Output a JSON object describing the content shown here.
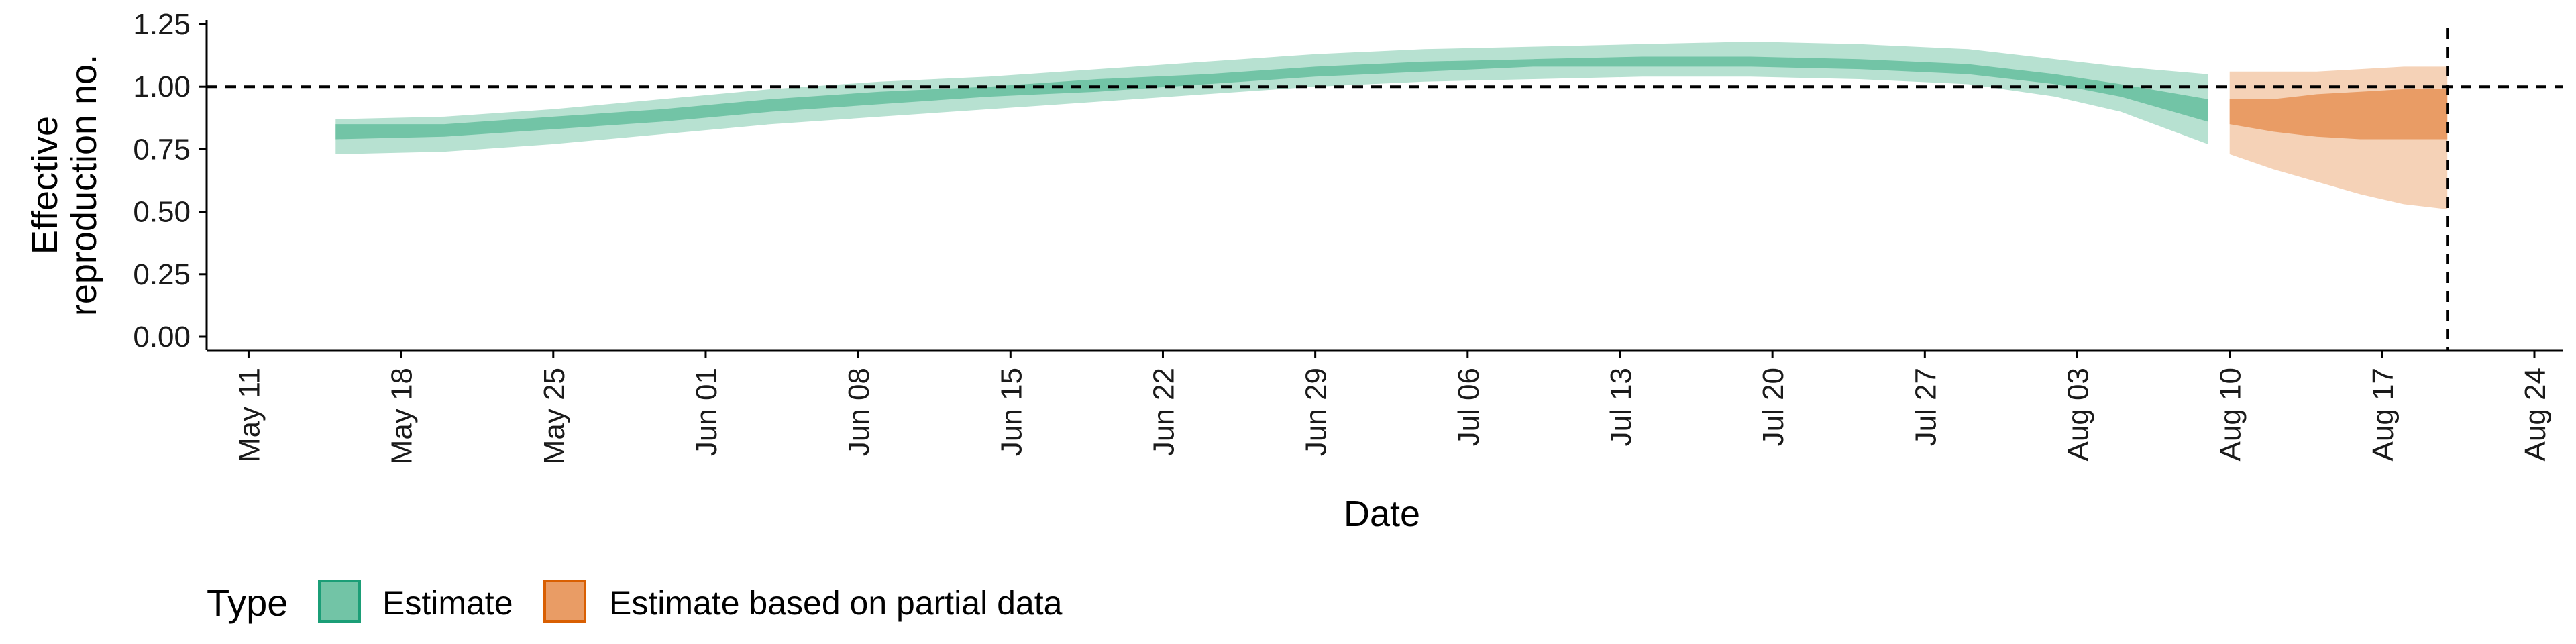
{
  "chart_data": {
    "type": "area",
    "xlabel": "Date",
    "ylabel_lines": [
      "Effective",
      "reproduction no."
    ],
    "ylim": [
      0,
      1.25
    ],
    "y_ticks": [
      {
        "value": 0.0,
        "label": "0.00"
      },
      {
        "value": 0.25,
        "label": "0.25"
      },
      {
        "value": 0.5,
        "label": "0.50"
      },
      {
        "value": 0.75,
        "label": "0.75"
      },
      {
        "value": 1.0,
        "label": "1.00"
      },
      {
        "value": 1.25,
        "label": "1.25"
      }
    ],
    "xlim": [
      "2020-05-10",
      "2020-08-24"
    ],
    "x_ticks": [
      {
        "date": "2020-05-11",
        "label": "May 11"
      },
      {
        "date": "2020-05-18",
        "label": "May 18"
      },
      {
        "date": "2020-05-25",
        "label": "May 25"
      },
      {
        "date": "2020-06-01",
        "label": "Jun 01"
      },
      {
        "date": "2020-06-08",
        "label": "Jun 08"
      },
      {
        "date": "2020-06-15",
        "label": "Jun 15"
      },
      {
        "date": "2020-06-22",
        "label": "Jun 22"
      },
      {
        "date": "2020-06-29",
        "label": "Jun 29"
      },
      {
        "date": "2020-07-06",
        "label": "Jul 06"
      },
      {
        "date": "2020-07-13",
        "label": "Jul 13"
      },
      {
        "date": "2020-07-20",
        "label": "Jul 20"
      },
      {
        "date": "2020-07-27",
        "label": "Jul 27"
      },
      {
        "date": "2020-08-03",
        "label": "Aug 03"
      },
      {
        "date": "2020-08-10",
        "label": "Aug 10"
      },
      {
        "date": "2020-08-17",
        "label": "Aug 17"
      },
      {
        "date": "2020-08-24",
        "label": "Aug 24"
      }
    ],
    "reference_line_y": 1.0,
    "reference_line_x": "2020-08-20",
    "legend": {
      "title": "Type",
      "position": "bottom-left",
      "entries": [
        {
          "label": "Estimate",
          "fill": "#72C4A6",
          "stroke": "#1B9E77"
        },
        {
          "label": "Estimate based on partial data",
          "fill": "#E99C65",
          "stroke": "#D95F02"
        }
      ]
    },
    "series": [
      {
        "name": "Estimate",
        "fill_outer": "#B7E1D1",
        "fill_inner": "#72C4A6",
        "points": [
          {
            "date": "2020-05-15",
            "lo90": 0.73,
            "lo50": 0.79,
            "hi50": 0.85,
            "hi90": 0.87
          },
          {
            "date": "2020-05-20",
            "lo90": 0.74,
            "lo50": 0.8,
            "hi50": 0.85,
            "hi90": 0.88
          },
          {
            "date": "2020-05-25",
            "lo90": 0.77,
            "lo50": 0.83,
            "hi50": 0.88,
            "hi90": 0.91
          },
          {
            "date": "2020-05-30",
            "lo90": 0.81,
            "lo50": 0.86,
            "hi50": 0.91,
            "hi90": 0.95
          },
          {
            "date": "2020-06-04",
            "lo90": 0.85,
            "lo50": 0.9,
            "hi50": 0.95,
            "hi90": 0.99
          },
          {
            "date": "2020-06-09",
            "lo90": 0.88,
            "lo50": 0.93,
            "hi50": 0.98,
            "hi90": 1.02
          },
          {
            "date": "2020-06-14",
            "lo90": 0.91,
            "lo50": 0.96,
            "hi50": 1.0,
            "hi90": 1.04
          },
          {
            "date": "2020-06-19",
            "lo90": 0.94,
            "lo50": 0.98,
            "hi50": 1.03,
            "hi90": 1.07
          },
          {
            "date": "2020-06-24",
            "lo90": 0.97,
            "lo50": 1.01,
            "hi50": 1.05,
            "hi90": 1.1
          },
          {
            "date": "2020-06-29",
            "lo90": 1.0,
            "lo50": 1.04,
            "hi50": 1.08,
            "hi90": 1.13
          },
          {
            "date": "2020-07-04",
            "lo90": 1.02,
            "lo50": 1.06,
            "hi50": 1.1,
            "hi90": 1.15
          },
          {
            "date": "2020-07-09",
            "lo90": 1.03,
            "lo50": 1.08,
            "hi50": 1.11,
            "hi90": 1.16
          },
          {
            "date": "2020-07-14",
            "lo90": 1.04,
            "lo50": 1.08,
            "hi50": 1.12,
            "hi90": 1.17
          },
          {
            "date": "2020-07-19",
            "lo90": 1.04,
            "lo50": 1.08,
            "hi50": 1.12,
            "hi90": 1.18
          },
          {
            "date": "2020-07-24",
            "lo90": 1.03,
            "lo50": 1.07,
            "hi50": 1.11,
            "hi90": 1.17
          },
          {
            "date": "2020-07-29",
            "lo90": 1.01,
            "lo50": 1.05,
            "hi50": 1.09,
            "hi90": 1.15
          },
          {
            "date": "2020-08-02",
            "lo90": 0.96,
            "lo50": 1.01,
            "hi50": 1.05,
            "hi90": 1.11
          },
          {
            "date": "2020-08-05",
            "lo90": 0.9,
            "lo50": 0.96,
            "hi50": 1.01,
            "hi90": 1.08
          },
          {
            "date": "2020-08-09",
            "lo90": 0.77,
            "lo50": 0.86,
            "hi50": 0.95,
            "hi90": 1.05
          }
        ]
      },
      {
        "name": "Estimate based on partial data",
        "fill_outer": "#F5D2B7",
        "fill_inner": "#E99C65",
        "points": [
          {
            "date": "2020-08-10",
            "lo90": 0.73,
            "lo50": 0.85,
            "hi50": 0.95,
            "hi90": 1.06
          },
          {
            "date": "2020-08-12",
            "lo90": 0.67,
            "lo50": 0.82,
            "hi50": 0.95,
            "hi90": 1.06
          },
          {
            "date": "2020-08-14",
            "lo90": 0.62,
            "lo50": 0.8,
            "hi50": 0.97,
            "hi90": 1.06
          },
          {
            "date": "2020-08-16",
            "lo90": 0.57,
            "lo50": 0.79,
            "hi50": 0.98,
            "hi90": 1.07
          },
          {
            "date": "2020-08-18",
            "lo90": 0.53,
            "lo50": 0.79,
            "hi50": 0.99,
            "hi90": 1.08
          },
          {
            "date": "2020-08-20",
            "lo90": 0.51,
            "lo50": 0.79,
            "hi50": 0.99,
            "hi90": 1.08
          }
        ]
      }
    ]
  }
}
